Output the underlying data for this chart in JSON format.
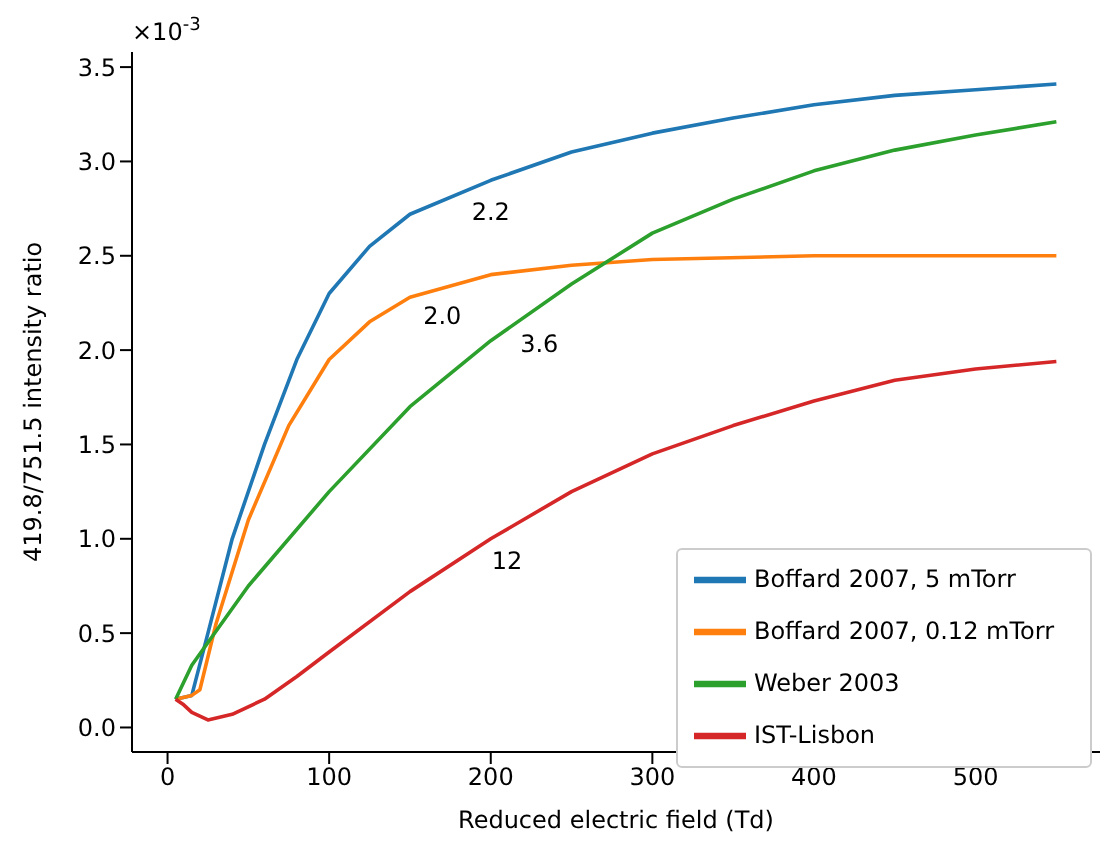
{
  "chart_data": {
    "type": "line",
    "xlabel": "Reduced electric field (Td)",
    "ylabel": "419.8/751.5 intensity ratio",
    "xlim": [
      -22,
      577
    ],
    "xticks": [
      0,
      100,
      200,
      300,
      400,
      500
    ],
    "ylim": [
      -0.13,
      3.58
    ],
    "yticks": [
      {
        "value": 0,
        "label": "0.0"
      },
      0.5,
      {
        "value": 1,
        "label": "1.0"
      },
      1.5,
      {
        "value": 2,
        "label": "2.0"
      },
      2.5,
      {
        "value": 3,
        "label": "3.0"
      },
      3.5
    ],
    "legend": "bottom right",
    "marker": "none",
    "line_style": "solid",
    "series": [
      {
        "name": "Boffard 2007, 5 mTorr",
        "color": "#1f77b4",
        "x": [
          5,
          15,
          25,
          40,
          60,
          80,
          100,
          125,
          150,
          200,
          250,
          300,
          350,
          400,
          450,
          500,
          550
        ],
        "values": [
          0.15,
          0.17,
          0.5,
          1.0,
          1.5,
          1.95,
          2.3,
          2.55,
          2.72,
          2.9,
          3.05,
          3.15,
          3.23,
          3.3,
          3.35,
          3.38,
          3.41
        ]
      },
      {
        "name": "Boffard 2007, 0.12 mTorr",
        "color": "#ff7f0e",
        "x": [
          5,
          15,
          20,
          30,
          50,
          75,
          100,
          125,
          150,
          200,
          250,
          300,
          400,
          550
        ],
        "values": [
          0.15,
          0.17,
          0.2,
          0.55,
          1.1,
          1.6,
          1.95,
          2.15,
          2.28,
          2.4,
          2.45,
          2.48,
          2.5,
          2.5
        ]
      },
      {
        "name": "Weber 2003",
        "color": "#2ca02c",
        "x": [
          5,
          15,
          25,
          50,
          100,
          150,
          200,
          250,
          300,
          350,
          400,
          450,
          500,
          550
        ],
        "values": [
          0.15,
          0.33,
          0.45,
          0.75,
          1.25,
          1.7,
          2.05,
          2.35,
          2.62,
          2.8,
          2.95,
          3.06,
          3.14,
          3.21
        ]
      },
      {
        "name": "IST-Lisbon",
        "color": "#d62728",
        "x": [
          5,
          10,
          15,
          25,
          40,
          60,
          80,
          100,
          150,
          200,
          250,
          300,
          350,
          400,
          450,
          500,
          550
        ],
        "values": [
          0.15,
          0.12,
          0.08,
          0.04,
          0.07,
          0.15,
          0.27,
          0.4,
          0.72,
          1.0,
          1.25,
          1.45,
          1.6,
          1.73,
          1.84,
          1.9,
          1.94
        ]
      }
    ],
    "annotations": [
      "×10$^{-3}$",
      {
        "text": "2.2",
        "x": 200,
        "y": 2.9
      },
      {
        "text": "2.0",
        "x": 170,
        "y": 2.35
      },
      {
        "text": "3.6",
        "x": 230,
        "y": 2.2
      },
      {
        "text": "12",
        "x": 210,
        "y": 1.05
      }
    ]
  }
}
